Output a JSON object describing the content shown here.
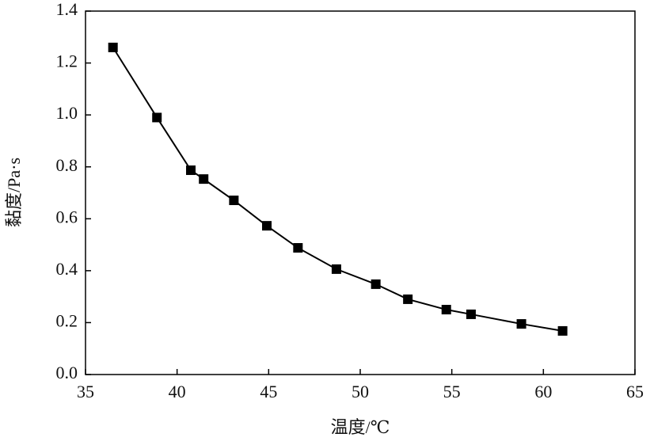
{
  "chart_data": {
    "type": "line",
    "x_label": "温度/℃",
    "y_label": "黏度/Pa·s",
    "series": [
      {
        "color": "#000000",
        "x": [
          36.5,
          38.9,
          40.75,
          41.45,
          43.1,
          44.9,
          46.6,
          48.7,
          50.85,
          52.6,
          54.7,
          56.05,
          58.8,
          61.05
        ],
        "values": [
          1.26,
          0.99,
          0.787,
          0.753,
          0.671,
          0.573,
          0.488,
          0.406,
          0.348,
          0.29,
          0.25,
          0.232,
          0.195,
          0.168
        ]
      }
    ],
    "xlim": [
      35,
      65
    ],
    "xticks": [
      35,
      40,
      45,
      50,
      55,
      60,
      65
    ],
    "ylim": [
      0,
      1.4
    ],
    "yticks": [
      {
        "value": 0,
        "label": "0.0"
      },
      0.2,
      0.4,
      0.6,
      0.8,
      {
        "value": 1,
        "label": "1.0"
      },
      1.2,
      1.4
    ],
    "grid": false
  }
}
